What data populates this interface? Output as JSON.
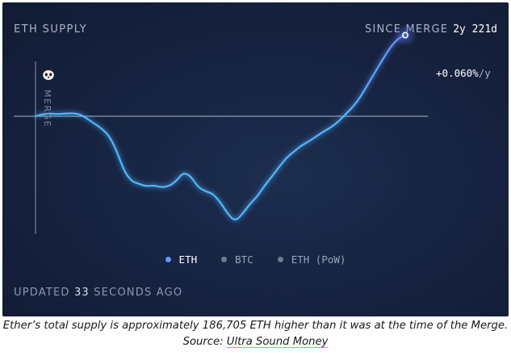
{
  "header": {
    "title": "ETH SUPPLY",
    "since_label": "SINCE MERGE",
    "since_value": "2y 221d"
  },
  "rate": {
    "value": "+0.060%",
    "unit": "/y"
  },
  "merge_label": "MERGE",
  "legend": [
    {
      "label": "ETH",
      "color": "#5b9cf7",
      "active": true
    },
    {
      "label": "BTC",
      "color": "#6f7a90",
      "active": false
    },
    {
      "label": "ETH (PoW)",
      "color": "#6f7a90",
      "active": false
    }
  ],
  "updated": {
    "prefix": "UPDATED",
    "num": "33",
    "suffix": "SECONDS AGO"
  },
  "caption": {
    "text": "Ether’s total supply is approximately 186,705 ETH higher than it was at the time of the Merge. Source: ",
    "link": "Ultra Sound Money"
  },
  "colors": {
    "line": "#4fb6ff",
    "line_end": "#6a8cff",
    "baseline": "#aeb6c7"
  },
  "chart_data": {
    "type": "line",
    "title": "ETH SUPPLY",
    "xlabel": "",
    "ylabel": "",
    "grid": false,
    "series": [
      {
        "name": "ETH",
        "x": [
          0,
          0.03,
          0.06,
          0.09,
          0.12,
          0.15,
          0.18,
          0.2,
          0.22,
          0.24,
          0.26,
          0.28,
          0.3,
          0.32,
          0.34,
          0.36,
          0.38,
          0.4,
          0.42,
          0.44,
          0.46,
          0.48,
          0.5,
          0.52,
          0.54,
          0.56,
          0.58,
          0.6,
          0.62,
          0.64,
          0.66,
          0.68,
          0.7,
          0.72,
          0.74,
          0.76,
          0.78,
          0.8,
          0.82,
          0.84,
          0.86,
          0.88,
          0.9,
          0.92,
          0.94,
          0.96,
          0.98,
          1.0
        ],
        "values": [
          0,
          0.06,
          0.04,
          0.06,
          0.05,
          -0.1,
          -0.25,
          -0.4,
          -0.7,
          -1.1,
          -1.3,
          -1.35,
          -1.4,
          -1.38,
          -1.42,
          -1.4,
          -1.3,
          -1.12,
          -1.2,
          -1.42,
          -1.5,
          -1.55,
          -1.72,
          -1.95,
          -2.1,
          -1.95,
          -1.75,
          -1.6,
          -1.38,
          -1.2,
          -1.0,
          -0.82,
          -0.7,
          -0.58,
          -0.5,
          -0.4,
          -0.3,
          -0.22,
          -0.1,
          0.05,
          0.2,
          0.4,
          0.65,
          0.9,
          1.15,
          1.38,
          1.55,
          1.62
        ]
      }
    ],
    "annotations": [
      "MERGE",
      "+0.060%/y"
    ]
  }
}
